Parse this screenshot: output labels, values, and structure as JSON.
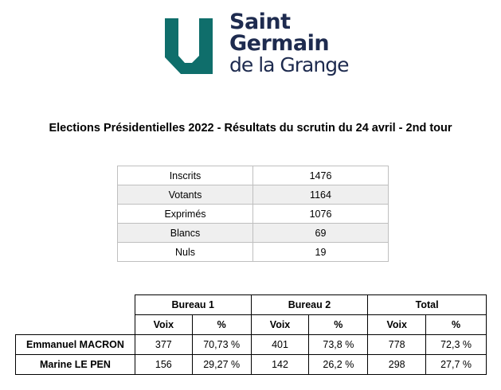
{
  "logo": {
    "line1": "Saint",
    "line2": "Germain",
    "line3": "de la Grange",
    "colors": {
      "shield": "#0f6e6b",
      "text": "#1e2b4f"
    }
  },
  "title": "Elections Présidentielles 2022 - Résultats du scrutin du 24 avril - 2nd tour",
  "summary": [
    {
      "label": "Inscrits",
      "value": "1476"
    },
    {
      "label": "Votants",
      "value": "1164"
    },
    {
      "label": "Exprimés",
      "value": "1076"
    },
    {
      "label": "Blancs",
      "value": "69"
    },
    {
      "label": "Nuls",
      "value": "19"
    }
  ],
  "results": {
    "groups": [
      "Bureau 1",
      "Bureau 2",
      "Total"
    ],
    "sub_headers": [
      "Voix",
      "%",
      "Voix",
      "%",
      "Voix",
      "%"
    ],
    "rows": [
      {
        "candidate": "Emmanuel MACRON",
        "values": [
          "377",
          "70,73 %",
          "401",
          "73,8 %",
          "778",
          "72,3 %"
        ]
      },
      {
        "candidate": "Marine LE PEN",
        "values": [
          "156",
          "29,27 %",
          "142",
          "26,2 %",
          "298",
          "27,7 %"
        ]
      }
    ]
  }
}
